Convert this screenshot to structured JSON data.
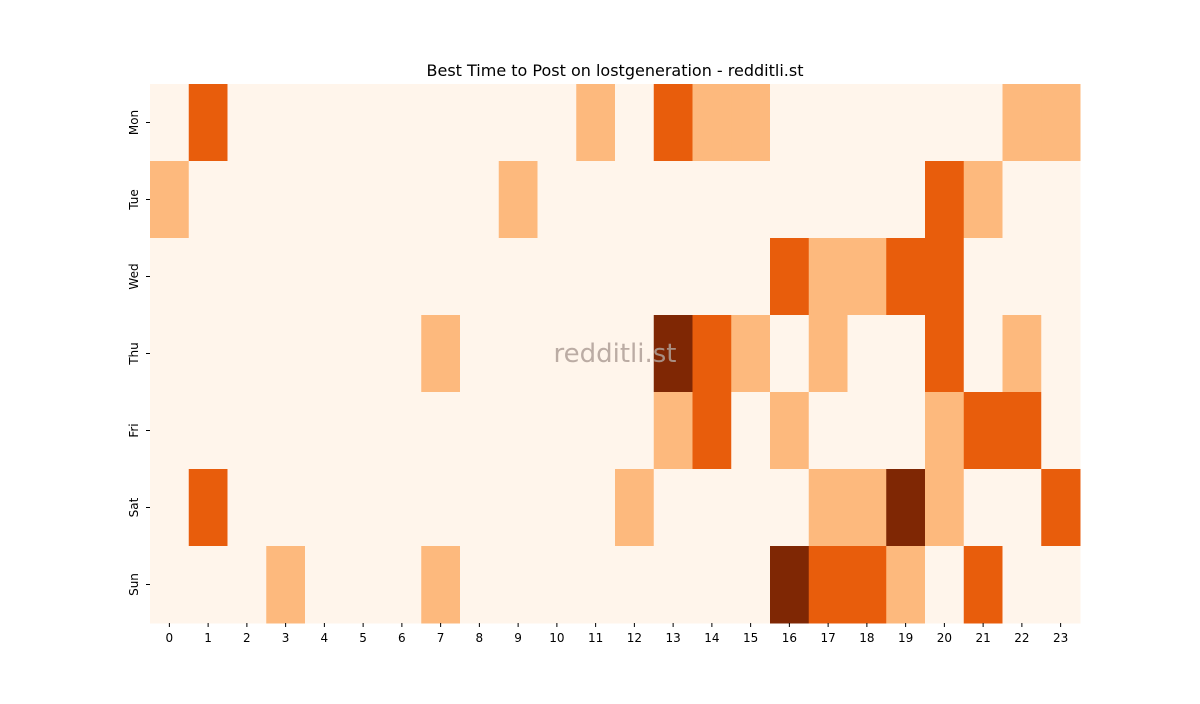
{
  "chart_data": {
    "type": "heatmap",
    "title": "Best Time to Post on lostgeneration - redditli.st",
    "watermark": "redditli.st",
    "x": [
      "0",
      "1",
      "2",
      "3",
      "4",
      "5",
      "6",
      "7",
      "8",
      "9",
      "10",
      "11",
      "12",
      "13",
      "14",
      "15",
      "16",
      "17",
      "18",
      "19",
      "20",
      "21",
      "22",
      "23"
    ],
    "y": [
      "Mon",
      "Tue",
      "Wed",
      "Thu",
      "Fri",
      "Sat",
      "Sun"
    ],
    "values": [
      [
        0,
        2,
        0,
        0,
        0,
        0,
        0,
        0,
        0,
        0,
        0,
        1,
        0,
        2,
        1,
        1,
        0,
        0,
        0,
        0,
        0,
        0,
        1,
        1
      ],
      [
        1,
        0,
        0,
        0,
        0,
        0,
        0,
        0,
        0,
        1,
        0,
        0,
        0,
        0,
        0,
        0,
        0,
        0,
        0,
        0,
        2,
        1,
        0,
        0
      ],
      [
        0,
        0,
        0,
        0,
        0,
        0,
        0,
        0,
        0,
        0,
        0,
        0,
        0,
        0,
        0,
        0,
        2,
        1,
        1,
        2,
        2,
        0,
        0,
        0
      ],
      [
        0,
        0,
        0,
        0,
        0,
        0,
        0,
        1,
        0,
        0,
        0,
        0,
        0,
        3,
        2,
        1,
        0,
        1,
        0,
        0,
        2,
        0,
        1,
        0
      ],
      [
        0,
        0,
        0,
        0,
        0,
        0,
        0,
        0,
        0,
        0,
        0,
        0,
        0,
        1,
        2,
        0,
        1,
        0,
        0,
        0,
        1,
        2,
        2,
        0
      ],
      [
        0,
        2,
        0,
        0,
        0,
        0,
        0,
        0,
        0,
        0,
        0,
        0,
        1,
        0,
        0,
        0,
        0,
        1,
        1,
        3,
        1,
        0,
        0,
        2
      ],
      [
        0,
        0,
        0,
        1,
        0,
        0,
        0,
        1,
        0,
        0,
        0,
        0,
        0,
        0,
        0,
        0,
        3,
        2,
        2,
        1,
        0,
        2,
        0,
        0
      ]
    ],
    "zlim": [
      0,
      3
    ],
    "colors": [
      "#fff5eb",
      "#fdb97d",
      "#e85d0c",
      "#7f2704"
    ]
  }
}
